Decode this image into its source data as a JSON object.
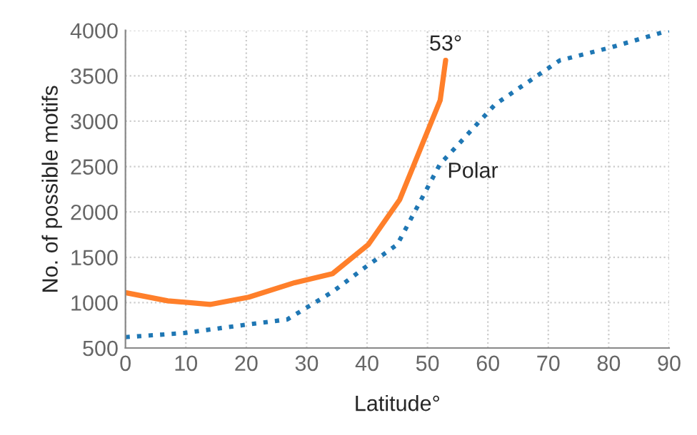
{
  "chart_data": {
    "type": "line",
    "xlabel": "Latitude°",
    "ylabel": "No. of possible motifs",
    "xlim": [
      0,
      90
    ],
    "ylim": [
      500,
      4000
    ],
    "xticks": [
      0,
      10,
      20,
      30,
      40,
      50,
      60,
      70,
      80,
      90
    ],
    "yticks": [
      500,
      1000,
      1500,
      2000,
      2500,
      3000,
      3500,
      4000
    ],
    "grid": true,
    "legend": false,
    "series": [
      {
        "name": "53°",
        "color": "#ff7f2a",
        "line_style": "solid",
        "x": [
          0,
          7,
          14,
          20.4,
          28,
          34.3,
          40.2,
          45.4,
          52.1,
          53
        ],
        "values": [
          1110,
          1020,
          980,
          1060,
          1220,
          1320,
          1640,
          2135,
          3230,
          3670
        ]
      },
      {
        "name": "Polar",
        "color": "#1f77b4",
        "line_style": "dotted",
        "x": [
          0,
          9.7,
          19.2,
          26.8,
          34.3,
          39.8,
          45,
          52.1,
          54.5,
          61.2,
          71.9,
          80.2,
          90
        ],
        "values": [
          620,
          665,
          750,
          815,
          1120,
          1395,
          1640,
          2530,
          2700,
          3185,
          3670,
          3810,
          4000
        ]
      }
    ]
  }
}
